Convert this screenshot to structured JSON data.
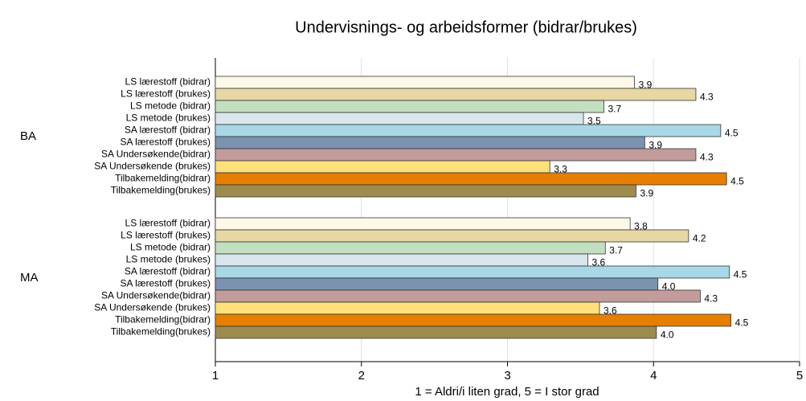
{
  "chart_data": {
    "type": "hbar",
    "title": "Undervisnings- og arbeidsformer (bidrar/brukes)",
    "xlabel": "1 = Aldri/i liten grad, 5 = I stor grad",
    "categories": [
      "BA",
      "MA"
    ],
    "xlim": [
      1,
      5
    ],
    "xticks": [
      1,
      2,
      3,
      4,
      5
    ],
    "grid": true,
    "series": [
      {
        "name": "LS lærestoff (bidrar)",
        "color": "#fdf8e7",
        "values": [
          3.87,
          3.84
        ],
        "value_labels": [
          "3.9",
          "3.8"
        ]
      },
      {
        "name": "LS lærestoff (brukes)",
        "color": "#e6d7a4",
        "values": [
          4.29,
          4.24
        ],
        "value_labels": [
          "4.3",
          "4.2"
        ]
      },
      {
        "name": "LS metode (bidrar)",
        "color": "#c2dfc0",
        "values": [
          3.66,
          3.67
        ],
        "value_labels": [
          "3.7",
          "3.7"
        ]
      },
      {
        "name": "LS metode (brukes)",
        "color": "#d9e6ee",
        "values": [
          3.52,
          3.55
        ],
        "value_labels": [
          "3.5",
          "3.6"
        ]
      },
      {
        "name": "SA lærestoff (bidrar)",
        "color": "#a8d8e6",
        "values": [
          4.46,
          4.52
        ],
        "value_labels": [
          "4.5",
          "4.5"
        ]
      },
      {
        "name": "SA lærestoff (brukes)",
        "color": "#7a93b0",
        "values": [
          3.94,
          4.03
        ],
        "value_labels": [
          "3.9",
          "4.0"
        ]
      },
      {
        "name": "SA Undersøkende(bidrar)",
        "color": "#c19c9b",
        "values": [
          4.29,
          4.32
        ],
        "value_labels": [
          "4.3",
          "4.3"
        ]
      },
      {
        "name": "SA Undersøkende (brukes)",
        "color": "#ffe07a",
        "values": [
          3.29,
          3.63
        ],
        "value_labels": [
          "3.3",
          "3.6"
        ]
      },
      {
        "name": "Tilbakemelding(bidrar)",
        "color": "#e67e00",
        "values": [
          4.5,
          4.53
        ],
        "value_labels": [
          "4.5",
          "4.5"
        ]
      },
      {
        "name": "Tilbakemelding(brukes)",
        "color": "#9e8b4e",
        "values": [
          3.88,
          4.02
        ],
        "value_labels": [
          "3.9",
          "4.0"
        ]
      }
    ]
  }
}
